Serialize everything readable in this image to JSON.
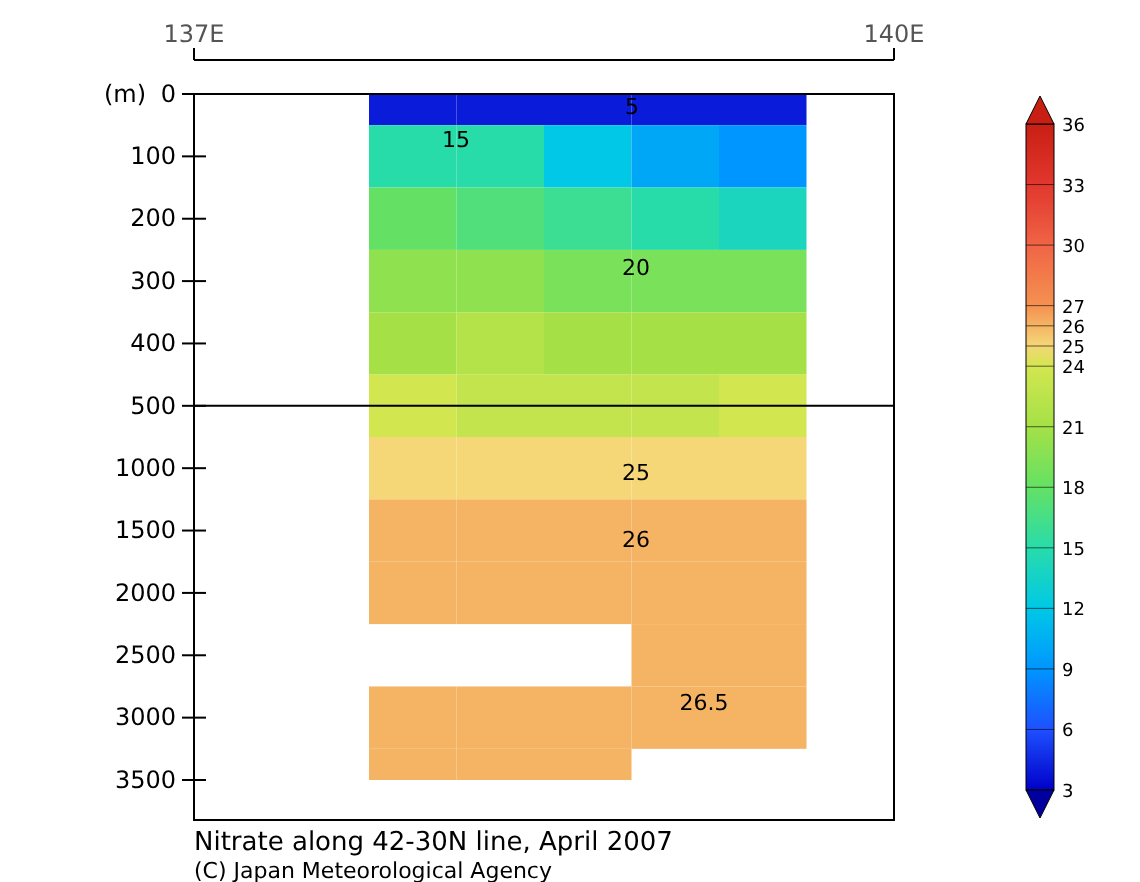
{
  "chart_data": {
    "type": "heatmap",
    "title": "Nitrate along 42-30N line, April 2007",
    "ylabel": "(m)",
    "categories": [
      null,
      null,
      null,
      null,
      null,
      null,
      null,
      null
    ],
    "y_categories": [
      "0",
      "100",
      "200",
      "300",
      "400",
      "500",
      "1000",
      "1500",
      "2000",
      "2500",
      "3000",
      "3500"
    ],
    "cells": [
      [
        null,
        null,
        4,
        4,
        4,
        4,
        4,
        null
      ],
      [
        null,
        null,
        15,
        15,
        12,
        10,
        9,
        null
      ],
      [
        null,
        null,
        18,
        17,
        16,
        15,
        14,
        null
      ],
      [
        null,
        null,
        20,
        20,
        19,
        19,
        19,
        null
      ],
      [
        null,
        null,
        21,
        22,
        21,
        21,
        21,
        null
      ],
      [
        null,
        null,
        24,
        23,
        23,
        23,
        24,
        null
      ],
      [
        null,
        null,
        25,
        25,
        25,
        25,
        25,
        null
      ],
      [
        null,
        null,
        26,
        26,
        26,
        26,
        26,
        null
      ],
      [
        null,
        null,
        26,
        26,
        26,
        26,
        26,
        null
      ],
      [
        null,
        null,
        null,
        null,
        null,
        26,
        26,
        null
      ],
      [
        null,
        null,
        26,
        26,
        26,
        26,
        26,
        null
      ],
      [
        null,
        null,
        26,
        26,
        26,
        null,
        null,
        null
      ]
    ],
    "clim": [
      3,
      36
    ],
    "cticks": [
      3,
      6,
      9,
      12,
      15,
      18,
      21,
      24,
      25,
      26,
      27,
      30,
      33,
      36
    ],
    "x2lim": [
      137,
      140
    ],
    "x2ticks": [
      {
        "value": 137,
        "label": "137E"
      },
      {
        "value": 140,
        "label": "140E"
      }
    ],
    "annotations": [
      "5",
      "15",
      "20",
      "25",
      "26",
      "26.5",
      "(C) Japan Meteorological Agency"
    ]
  }
}
